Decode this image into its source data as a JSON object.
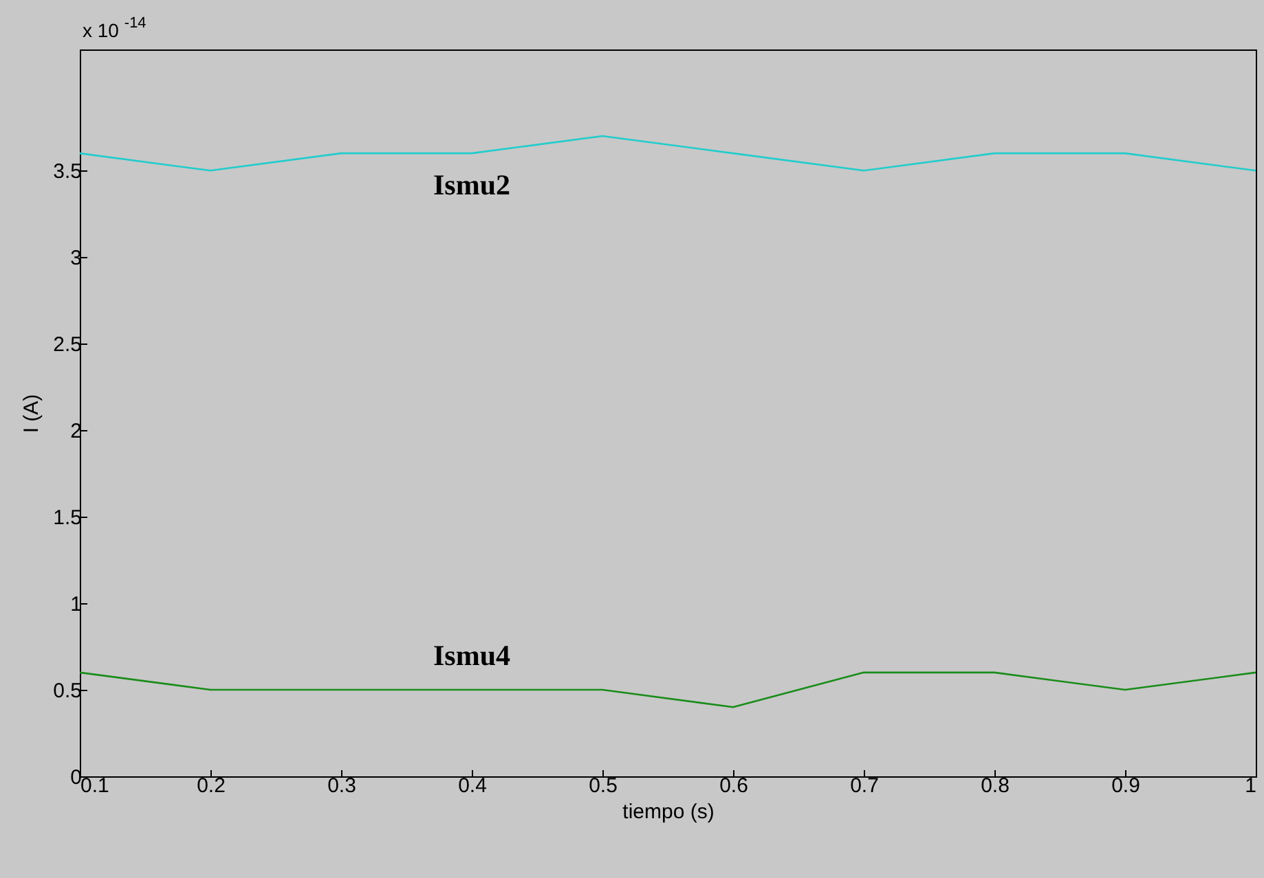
{
  "chart_data": {
    "type": "line",
    "xlabel": "tiempo (s)",
    "ylabel": "I (A)",
    "annotations": [
      "x 10$^{-14}$"
    ],
    "x": [
      0.1,
      0.2,
      0.3,
      0.4,
      0.5,
      0.6,
      0.7,
      0.8,
      0.9,
      1.0
    ],
    "series": [
      {
        "name": "Ismu2",
        "color": "#22cccc",
        "values": [
          3.6,
          3.5,
          3.6,
          3.6,
          3.7,
          3.6,
          3.5,
          3.6,
          3.6,
          3.5
        ]
      },
      {
        "name": "Ismu4",
        "color": "#1a8c1a",
        "values": [
          0.6,
          0.5,
          0.5,
          0.5,
          0.5,
          0.4,
          0.6,
          0.6,
          0.5,
          0.6
        ]
      }
    ],
    "xlim": [
      0.1,
      1.0
    ],
    "xticks": [
      0.1,
      0.2,
      0.3,
      0.4,
      0.5,
      0.6,
      0.7,
      0.8,
      0.9,
      1
    ],
    "ylim": [
      0,
      4.2
    ],
    "yticks": [
      0,
      0.5,
      1,
      1.5,
      2,
      2.5,
      3,
      3.5
    ]
  }
}
